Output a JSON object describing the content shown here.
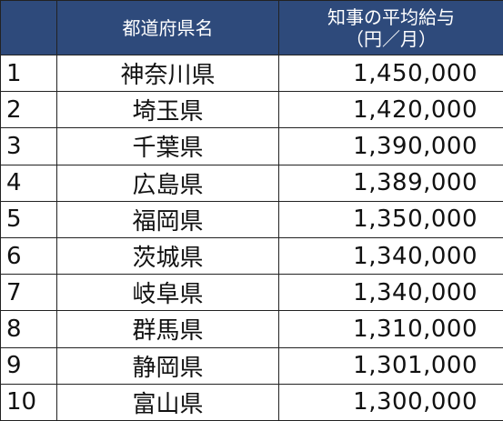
{
  "table": {
    "header_bg": "#2e4a7b",
    "columns": {
      "rank": "",
      "prefecture": "都道府県名",
      "salary_line1": "知事の平均給与",
      "salary_line2": "（円／月）"
    },
    "rows": [
      {
        "rank": "1",
        "prefecture": "神奈川県",
        "salary": "1,450,000"
      },
      {
        "rank": "2",
        "prefecture": "埼玉県",
        "salary": "1,420,000"
      },
      {
        "rank": "3",
        "prefecture": "千葉県",
        "salary": "1,390,000"
      },
      {
        "rank": "4",
        "prefecture": "広島県",
        "salary": "1,389,000"
      },
      {
        "rank": "5",
        "prefecture": "福岡県",
        "salary": "1,350,000"
      },
      {
        "rank": "6",
        "prefecture": "茨城県",
        "salary": "1,340,000"
      },
      {
        "rank": "7",
        "prefecture": "岐阜県",
        "salary": "1,340,000"
      },
      {
        "rank": "8",
        "prefecture": "群馬県",
        "salary": "1,310,000"
      },
      {
        "rank": "9",
        "prefecture": "静岡県",
        "salary": "1,301,000"
      },
      {
        "rank": "10",
        "prefecture": "富山県",
        "salary": "1,300,000"
      }
    ]
  }
}
